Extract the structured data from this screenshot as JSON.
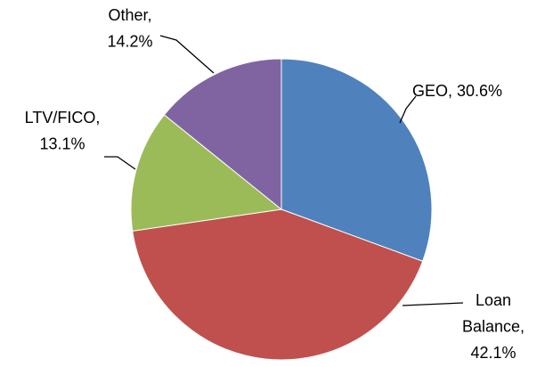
{
  "chart_data": {
    "type": "pie",
    "values": [
      30.6,
      42.1,
      13.1,
      14.2
    ],
    "value_labels": [
      [
        "GEO, 30.6%"
      ],
      [
        "Loan",
        "Balance,",
        "42.1%"
      ],
      [
        "LTV/FICO,",
        "13.1%"
      ],
      [
        "Other,",
        "14.2%"
      ]
    ],
    "colors": [
      "#4f81bd",
      "#c0504d",
      "#9bbb59",
      "#8064a2"
    ]
  }
}
